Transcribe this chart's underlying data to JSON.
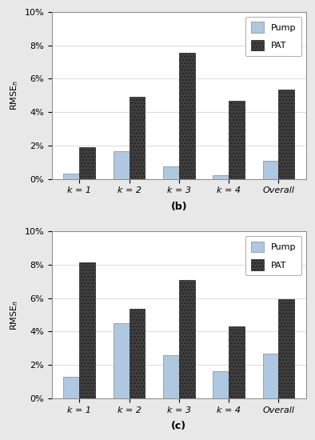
{
  "categories": [
    "k = 1",
    "k = 2",
    "k = 3",
    "k = 4",
    "Overall"
  ],
  "chart_b": {
    "pump": [
      0.3,
      1.65,
      0.75,
      0.2,
      1.1
    ],
    "pat": [
      1.9,
      4.9,
      7.55,
      4.7,
      5.35
    ],
    "ylabel": "RMSE$_{n}$",
    "label": "(b)"
  },
  "chart_c": {
    "pump": [
      1.3,
      4.5,
      2.6,
      1.6,
      2.7
    ],
    "pat": [
      8.15,
      5.35,
      7.1,
      4.3,
      5.95
    ],
    "ylabel": "RMSE$_{n}$",
    "label": "(c)"
  },
  "pump_color": "#adc8e0",
  "pat_color": "#404040",
  "pat_hatch": "....",
  "ylim": [
    0,
    10
  ],
  "yticks": [
    0,
    2,
    4,
    6,
    8,
    10
  ],
  "yticklabels": [
    "0%",
    "2%",
    "4%",
    "6%",
    "8%",
    "10%"
  ],
  "bar_width": 0.32,
  "legend_pump": "Pump",
  "legend_pat": "PAT",
  "figsize": [
    3.94,
    5.5
  ],
  "dpi": 100
}
